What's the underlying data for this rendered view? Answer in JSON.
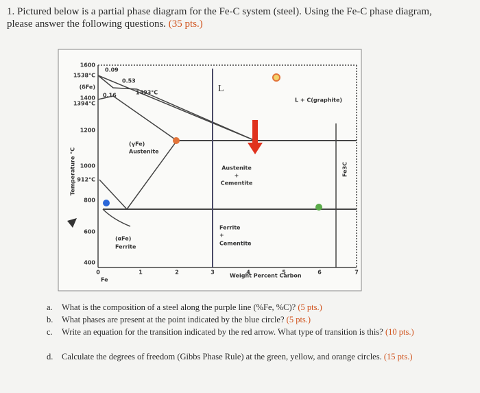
{
  "question": {
    "number": "1.",
    "text": "Pictured below is a partial phase diagram for the Fe-C system (steel). Using the Fe-C phase diagram, please answer the following questions.",
    "points": "(35 pts.)"
  },
  "diagram": {
    "y_axis_label": "Temperature °C",
    "x_axis_label": "Weight Percent Carbon",
    "origin_label": "Fe",
    "y_labels": [
      "1600",
      "1538°C",
      "(δFe)",
      "1400",
      "1394°C",
      "1200",
      "1000",
      "912°C",
      "800",
      "600",
      "400"
    ],
    "x_labels": [
      "0",
      "1",
      "2",
      "3",
      "4",
      "5",
      "6",
      "7"
    ],
    "annotations": [
      "0.09",
      "0.53",
      "0.16",
      "1493°C"
    ],
    "regions": [
      "L",
      "L + C(graphite)",
      "(γFe)",
      "Austenite",
      "Austenite",
      "+",
      "Cementite",
      "(αFe)",
      "Ferrite",
      "Ferrite",
      "+",
      "Cementite",
      "Fe3C"
    ]
  },
  "subquestions": [
    {
      "letter": "a.",
      "text": "What is the composition of a steel along the purple line (%Fe, %C)?",
      "points": "(5 pts.)"
    },
    {
      "letter": "b.",
      "text": "What phases are present at the point indicated by the blue circle?",
      "points": "(5 pts.)"
    },
    {
      "letter": "c.",
      "text": "Write an equation for the transition indicated by the red arrow. What type of transition is this?",
      "points": "(10 pts.)"
    },
    {
      "letter": "d.",
      "text": "Calculate the degrees of freedom (Gibbs Phase Rule) at the green, yellow, and orange circles.",
      "points": "(15 pts.)"
    }
  ]
}
